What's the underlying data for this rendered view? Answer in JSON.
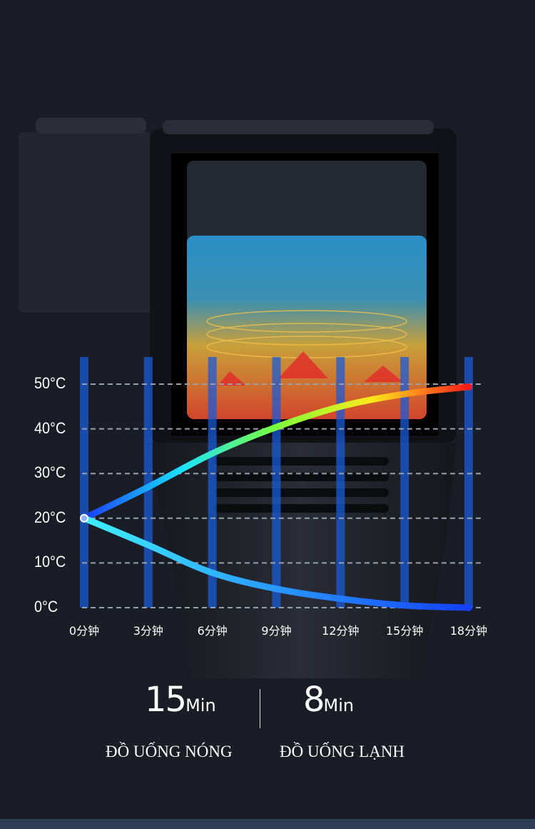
{
  "chart_data": {
    "type": "line",
    "x": [
      0,
      3,
      6,
      9,
      12,
      15,
      18
    ],
    "xtick_labels": [
      "0分钟",
      "3分钟",
      "6分钟",
      "9分钟",
      "12分钟",
      "15分钟",
      "18分钟"
    ],
    "ytick_labels": [
      "50°C",
      "40°C",
      "30°C",
      "20°C",
      "10°C",
      "0°C"
    ],
    "yticks": [
      50,
      40,
      30,
      20,
      10,
      0
    ],
    "ylim": [
      0,
      50
    ],
    "xlim": [
      0,
      18
    ],
    "grid": "horizontal dashed",
    "series": [
      {
        "values": [
          20,
          27,
          34.5,
          40.4,
          45,
          47.8,
          49.4
        ],
        "colors": [
          "#1a3cff",
          "#19e0ff",
          "#7dff3a",
          "#ffe81a",
          "#ff1a1a"
        ]
      },
      {
        "values": [
          20,
          14,
          7.8,
          4.2,
          2,
          0.5,
          0
        ],
        "colors": [
          "#3ff0ff",
          "#1440ff"
        ]
      }
    ],
    "bar_color": "#1a5bd8"
  },
  "stats": [
    {
      "value": "15",
      "unit": "Min",
      "caption": "ĐỒ UỐNG NÓNG"
    },
    {
      "value": "8",
      "unit": "Min",
      "caption": "ĐỒ UỐNG LẠNH"
    }
  ]
}
